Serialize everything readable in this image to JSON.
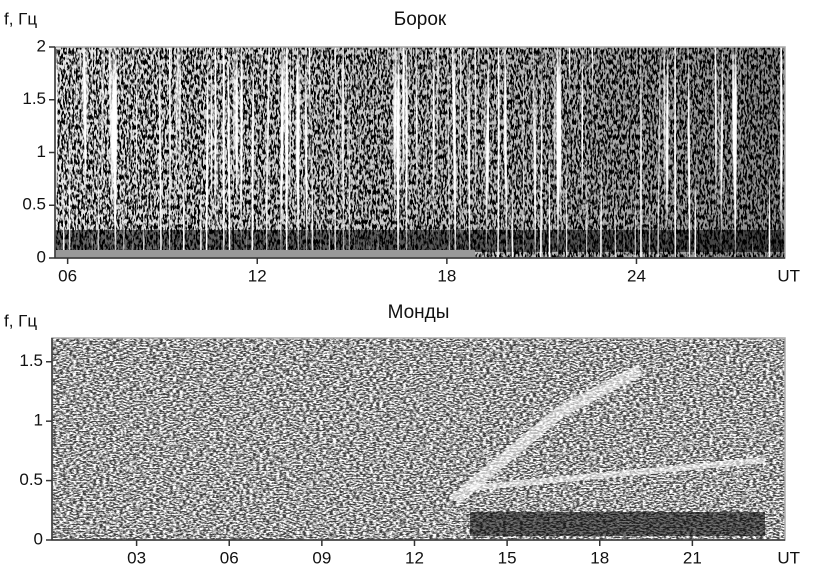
{
  "chart_data": [
    {
      "type": "spectrogram",
      "title": "Борок",
      "ylabel": "f, Гц",
      "xlabel": "UT",
      "xlim": [
        5.6,
        28.7
      ],
      "ylim": [
        0,
        2
      ],
      "xticks": [
        {
          "value": 6,
          "label": "06"
        },
        12,
        18,
        24
      ],
      "yticks": [
        0,
        0.5,
        1,
        1.5,
        2
      ]
    },
    {
      "type": "spectrogram",
      "title": "Монды",
      "ylabel": "f, Гц",
      "xlabel": "UT",
      "xlim": [
        0.26,
        24
      ],
      "ylim": [
        0,
        1.7
      ],
      "xticks": [
        {
          "value": 3,
          "label": "03"
        },
        {
          "value": 6,
          "label": "06"
        },
        {
          "value": 9,
          "label": "09"
        },
        12,
        15,
        18,
        21
      ],
      "yticks": [
        0,
        0.5,
        1,
        1.5
      ]
    }
  ]
}
